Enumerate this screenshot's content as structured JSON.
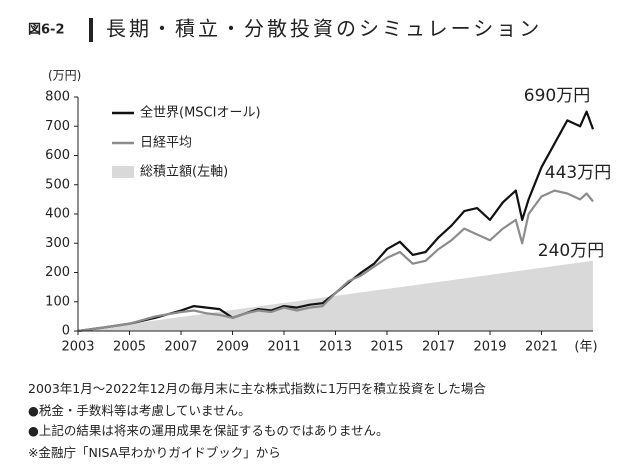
{
  "chart_data": {
    "type": "line",
    "figure_label": "図6-2",
    "title": "長期・積立・分散投資のシミュレーション",
    "y_unit": "(万円)",
    "x_unit": "(年)",
    "x": [
      2003,
      2004,
      2005,
      2006,
      2007,
      2007.5,
      2008,
      2008.5,
      2009,
      2009.5,
      2010,
      2010.5,
      2011,
      2011.5,
      2012,
      2012.5,
      2013,
      2013.5,
      2014,
      2014.5,
      2015,
      2015.5,
      2016,
      2016.5,
      2017,
      2017.5,
      2018,
      2018.5,
      2019,
      2019.5,
      2020,
      2020.25,
      2020.5,
      2021,
      2021.5,
      2022,
      2022.5,
      2022.75,
      2023
    ],
    "series": [
      {
        "name": "全世界(MSCIオール)",
        "color": "#111111",
        "values": [
          0,
          12,
          25,
          45,
          70,
          85,
          80,
          75,
          45,
          60,
          75,
          70,
          85,
          80,
          90,
          95,
          130,
          165,
          200,
          230,
          280,
          305,
          260,
          270,
          320,
          360,
          410,
          420,
          380,
          440,
          480,
          380,
          450,
          560,
          640,
          720,
          700,
          750,
          690
        ]
      },
      {
        "name": "日経平均",
        "color": "#8c8c8c",
        "values": [
          0,
          12,
          25,
          50,
          65,
          70,
          60,
          55,
          45,
          60,
          70,
          65,
          80,
          70,
          80,
          85,
          130,
          170,
          190,
          220,
          250,
          270,
          230,
          240,
          280,
          310,
          350,
          330,
          310,
          350,
          380,
          300,
          400,
          460,
          480,
          470,
          450,
          470,
          443
        ]
      },
      {
        "name": "総積立額(左軸)",
        "color": "#d9d9d9",
        "fill": "area",
        "x": [
          2003,
          2023
        ],
        "values": [
          0,
          240
        ]
      }
    ],
    "annotations": [
      "690万円",
      "443万円",
      "240万円"
    ],
    "xlim": [
      2003,
      2023
    ],
    "xticks": [
      2003,
      2005,
      2007,
      2009,
      2011,
      2013,
      2015,
      2017,
      2019,
      2021
    ],
    "ylim": [
      0,
      800
    ],
    "yticks": [
      0,
      100,
      200,
      300,
      400,
      500,
      600,
      700,
      800
    ],
    "legend": "upper left",
    "notes": [
      "2003年1月～2022年12月の毎月末に主な株式指数に1万円を積立投資をした場合",
      "●税金・手数料等は考慮していません。",
      "●上記の結果は将来の運用成果を保証するものではありません。",
      "※金融庁「NISA早わかりガイドブック」から"
    ]
  }
}
